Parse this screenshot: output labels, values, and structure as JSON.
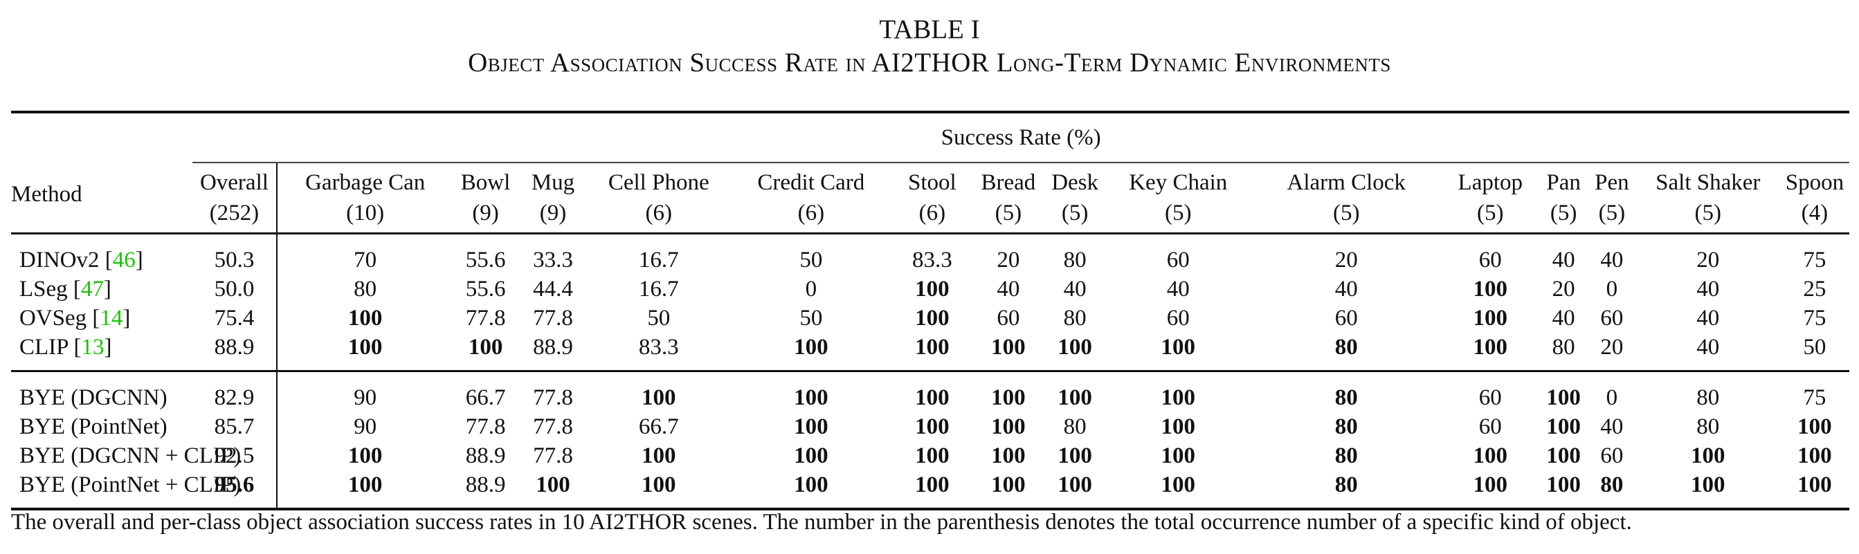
{
  "table_label": "TABLE I",
  "table_title": "Object Association Success Rate in AI2THOR Long-Term Dynamic Environments",
  "header": {
    "method": "Method",
    "group": "Success Rate (%)",
    "columns": [
      {
        "name": "Overall",
        "count": "(252)"
      },
      {
        "name": "Garbage Can",
        "count": "(10)"
      },
      {
        "name": "Bowl",
        "count": "(9)"
      },
      {
        "name": "Mug",
        "count": "(9)"
      },
      {
        "name": "Cell Phone",
        "count": "(6)"
      },
      {
        "name": "Credit Card",
        "count": "(6)"
      },
      {
        "name": "Stool",
        "count": "(6)"
      },
      {
        "name": "Bread",
        "count": "(5)"
      },
      {
        "name": "Desk",
        "count": "(5)"
      },
      {
        "name": "Key Chain",
        "count": "(5)"
      },
      {
        "name": "Alarm Clock",
        "count": "(5)"
      },
      {
        "name": "Laptop",
        "count": "(5)"
      },
      {
        "name": "Pan",
        "count": "(5)"
      },
      {
        "name": "Pen",
        "count": "(5)"
      },
      {
        "name": "Salt Shaker",
        "count": "(5)"
      },
      {
        "name": "Spoon",
        "count": "(4)"
      }
    ]
  },
  "groups": [
    {
      "rows": [
        {
          "method": "DINOv2",
          "ref": "46",
          "values": [
            "50.3",
            "70",
            "55.6",
            "33.3",
            "16.7",
            "50",
            "83.3",
            "20",
            "80",
            "60",
            "20",
            "60",
            "40",
            "40",
            "20",
            "75"
          ],
          "bold": []
        },
        {
          "method": "LSeg",
          "ref": "47",
          "values": [
            "50.0",
            "80",
            "55.6",
            "44.4",
            "16.7",
            "0",
            "100",
            "40",
            "40",
            "40",
            "40",
            "100",
            "20",
            "0",
            "40",
            "25"
          ],
          "bold": [
            6,
            11
          ]
        },
        {
          "method": "OVSeg",
          "ref": "14",
          "values": [
            "75.4",
            "100",
            "77.8",
            "77.8",
            "50",
            "50",
            "100",
            "60",
            "80",
            "60",
            "60",
            "100",
            "40",
            "60",
            "40",
            "75"
          ],
          "bold": [
            1,
            6,
            11
          ]
        },
        {
          "method": "CLIP",
          "ref": "13",
          "values": [
            "88.9",
            "100",
            "100",
            "88.9",
            "83.3",
            "100",
            "100",
            "100",
            "100",
            "100",
            "80",
            "100",
            "80",
            "20",
            "40",
            "50"
          ],
          "bold": [
            1,
            2,
            5,
            6,
            7,
            8,
            9,
            10,
            11
          ]
        }
      ]
    },
    {
      "rows": [
        {
          "method": "BYE (DGCNN)",
          "ref": "",
          "values": [
            "82.9",
            "90",
            "66.7",
            "77.8",
            "100",
            "100",
            "100",
            "100",
            "100",
            "100",
            "80",
            "60",
            "100",
            "0",
            "80",
            "75"
          ],
          "bold": [
            4,
            5,
            6,
            7,
            8,
            9,
            10,
            12
          ]
        },
        {
          "method": "BYE (PointNet)",
          "ref": "",
          "values": [
            "85.7",
            "90",
            "77.8",
            "77.8",
            "66.7",
            "100",
            "100",
            "100",
            "80",
            "100",
            "80",
            "60",
            "100",
            "40",
            "80",
            "100"
          ],
          "bold": [
            5,
            6,
            7,
            9,
            10,
            12,
            15
          ]
        },
        {
          "method": "BYE (DGCNN + CLIP)",
          "ref": "",
          "values": [
            "92.5",
            "100",
            "88.9",
            "77.8",
            "100",
            "100",
            "100",
            "100",
            "100",
            "100",
            "80",
            "100",
            "100",
            "60",
            "100",
            "100"
          ],
          "bold": [
            1,
            4,
            5,
            6,
            7,
            8,
            9,
            10,
            11,
            12,
            14,
            15
          ]
        },
        {
          "method": "BYE (PointNet + CLIP)",
          "ref": "",
          "values": [
            "95.6",
            "100",
            "88.9",
            "100",
            "100",
            "100",
            "100",
            "100",
            "100",
            "100",
            "80",
            "100",
            "100",
            "80",
            "100",
            "100"
          ],
          "bold": [
            0,
            1,
            3,
            4,
            5,
            6,
            7,
            8,
            9,
            10,
            11,
            12,
            13,
            14,
            15
          ]
        }
      ]
    }
  ],
  "note": "The overall and per-class object association success rates in 10 AI2THOR scenes. The number in the parenthesis denotes the total occurrence number of a specific kind of object."
}
